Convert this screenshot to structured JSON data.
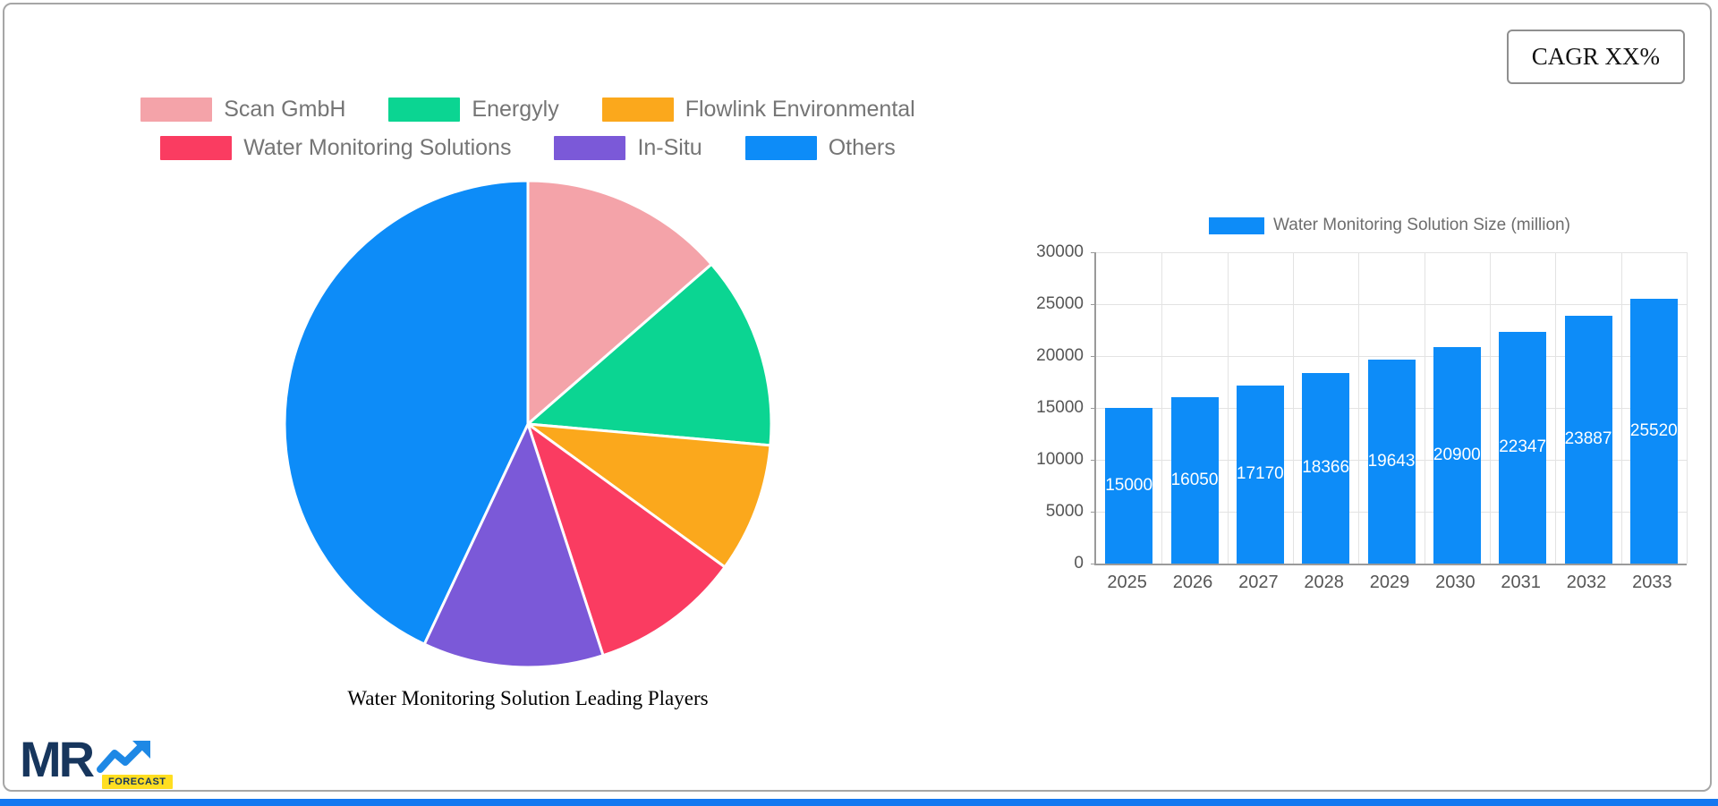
{
  "cagr": {
    "label": "CAGR XX%"
  },
  "logo": {
    "mr": "MR",
    "forecast": "FORECAST",
    "navy": "#17365D",
    "arrow_blue": "#1E88E5",
    "badge_yellow": "#FFDE21"
  },
  "footer": {
    "strip_color": "#1478F0"
  },
  "chart_data": [
    {
      "type": "pie",
      "title": "Water Monitoring Solution Leading Players",
      "labels": [
        "Scan GmbH",
        "Energyly",
        "Flowlink Environmental",
        "Water Monitoring Solutions",
        "In-Situ",
        "Others"
      ],
      "values_percent": [
        13.6,
        12.8,
        8.6,
        10.0,
        12.0,
        43.0
      ],
      "colors": [
        "#F4A3A9",
        "#0BD592",
        "#FBA81C",
        "#FA3C61",
        "#7B59D8",
        "#0D8CF8"
      ],
      "legend_position": "top",
      "legend_rows": [
        [
          0,
          1,
          2
        ],
        [
          3,
          4,
          5
        ]
      ],
      "start_angle_deg": 0,
      "direction": "clockwise",
      "slice_border_color": "#FFFFFF"
    },
    {
      "type": "bar",
      "legend": "Water Monitoring Solution Size (million)",
      "categories": [
        "2025",
        "2026",
        "2027",
        "2028",
        "2029",
        "2030",
        "2031",
        "2032",
        "2033"
      ],
      "values": [
        15000,
        16050,
        17170,
        18366,
        19643,
        20900,
        22347,
        23887,
        25520
      ],
      "bar_color": "#0D8CF8",
      "ylim": [
        0,
        30000
      ],
      "y_ticks": [
        0,
        5000,
        10000,
        15000,
        20000,
        25000,
        30000
      ],
      "grid": true,
      "value_label_color": "#FFFFFF",
      "value_label_position": "center-inside"
    }
  ]
}
